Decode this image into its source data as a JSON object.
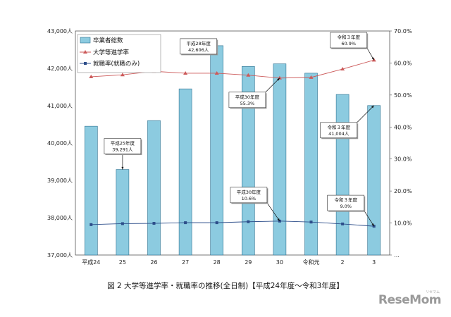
{
  "chart_data": {
    "type": "bar+line",
    "categories": [
      "平成24",
      "25",
      "26",
      "27",
      "28",
      "29",
      "30",
      "令和元",
      "2",
      "3"
    ],
    "series": [
      {
        "name": "卒業者総数",
        "type": "bar",
        "axis": "left",
        "values": [
          40450,
          39291,
          40600,
          41450,
          42606,
          42050,
          42120,
          41870,
          41300,
          41004
        ]
      },
      {
        "name": "大学等進学率",
        "type": "line",
        "axis": "right",
        "values": [
          55.7,
          56.3,
          57.4,
          56.8,
          56.8,
          56.2,
          55.3,
          55.5,
          58.1,
          60.9
        ]
      },
      {
        "name": "就職率(就職のみ)",
        "type": "line",
        "axis": "right",
        "values": [
          9.5,
          9.8,
          9.9,
          10.1,
          10.1,
          10.4,
          10.6,
          10.3,
          9.7,
          9.0
        ]
      }
    ],
    "left_axis": {
      "min": 37000,
      "max": 43000,
      "ticks": [
        "37,000人",
        "38,000人",
        "39,000人",
        "40,000人",
        "41,000人",
        "42,000人",
        "43,000人"
      ]
    },
    "right_axis": {
      "min": 0,
      "max": 70,
      "ticks": [
        "…",
        "10.0%",
        "20.0%",
        "30.0%",
        "40.0%",
        "50.0%",
        "60.0%",
        "70.0%"
      ]
    },
    "annotations": [
      {
        "lines": [
          "平成25年度",
          "39,291人"
        ],
        "series": 0,
        "index": 1
      },
      {
        "lines": [
          "平成28年度",
          "42,606人"
        ],
        "series": 0,
        "index": 4
      },
      {
        "lines": [
          "平成30年度",
          "55.3%"
        ],
        "series": 1,
        "index": 6
      },
      {
        "lines": [
          "平成30年度",
          "10.6%"
        ],
        "series": 2,
        "index": 6
      },
      {
        "lines": [
          "令和３年度",
          "60.9%"
        ],
        "series": 1,
        "index": 9
      },
      {
        "lines": [
          "令和３年度",
          "41,004人"
        ],
        "series": 0,
        "index": 9
      },
      {
        "lines": [
          "令和３年度",
          "9.0%"
        ],
        "series": 2,
        "index": 9
      }
    ],
    "legend_position": "top-left",
    "colors": {
      "bar": "#8ccbe0",
      "bar_stroke": "#2b6f8e",
      "advance": "#cc5a5a",
      "employ": "#2d4e8a"
    }
  },
  "caption": "図 2 大学等進学率・就職率の推移(全日制)【平成24年度～令和3年度】",
  "logo": {
    "text": "ReseMom",
    "sub": "リセマム"
  }
}
